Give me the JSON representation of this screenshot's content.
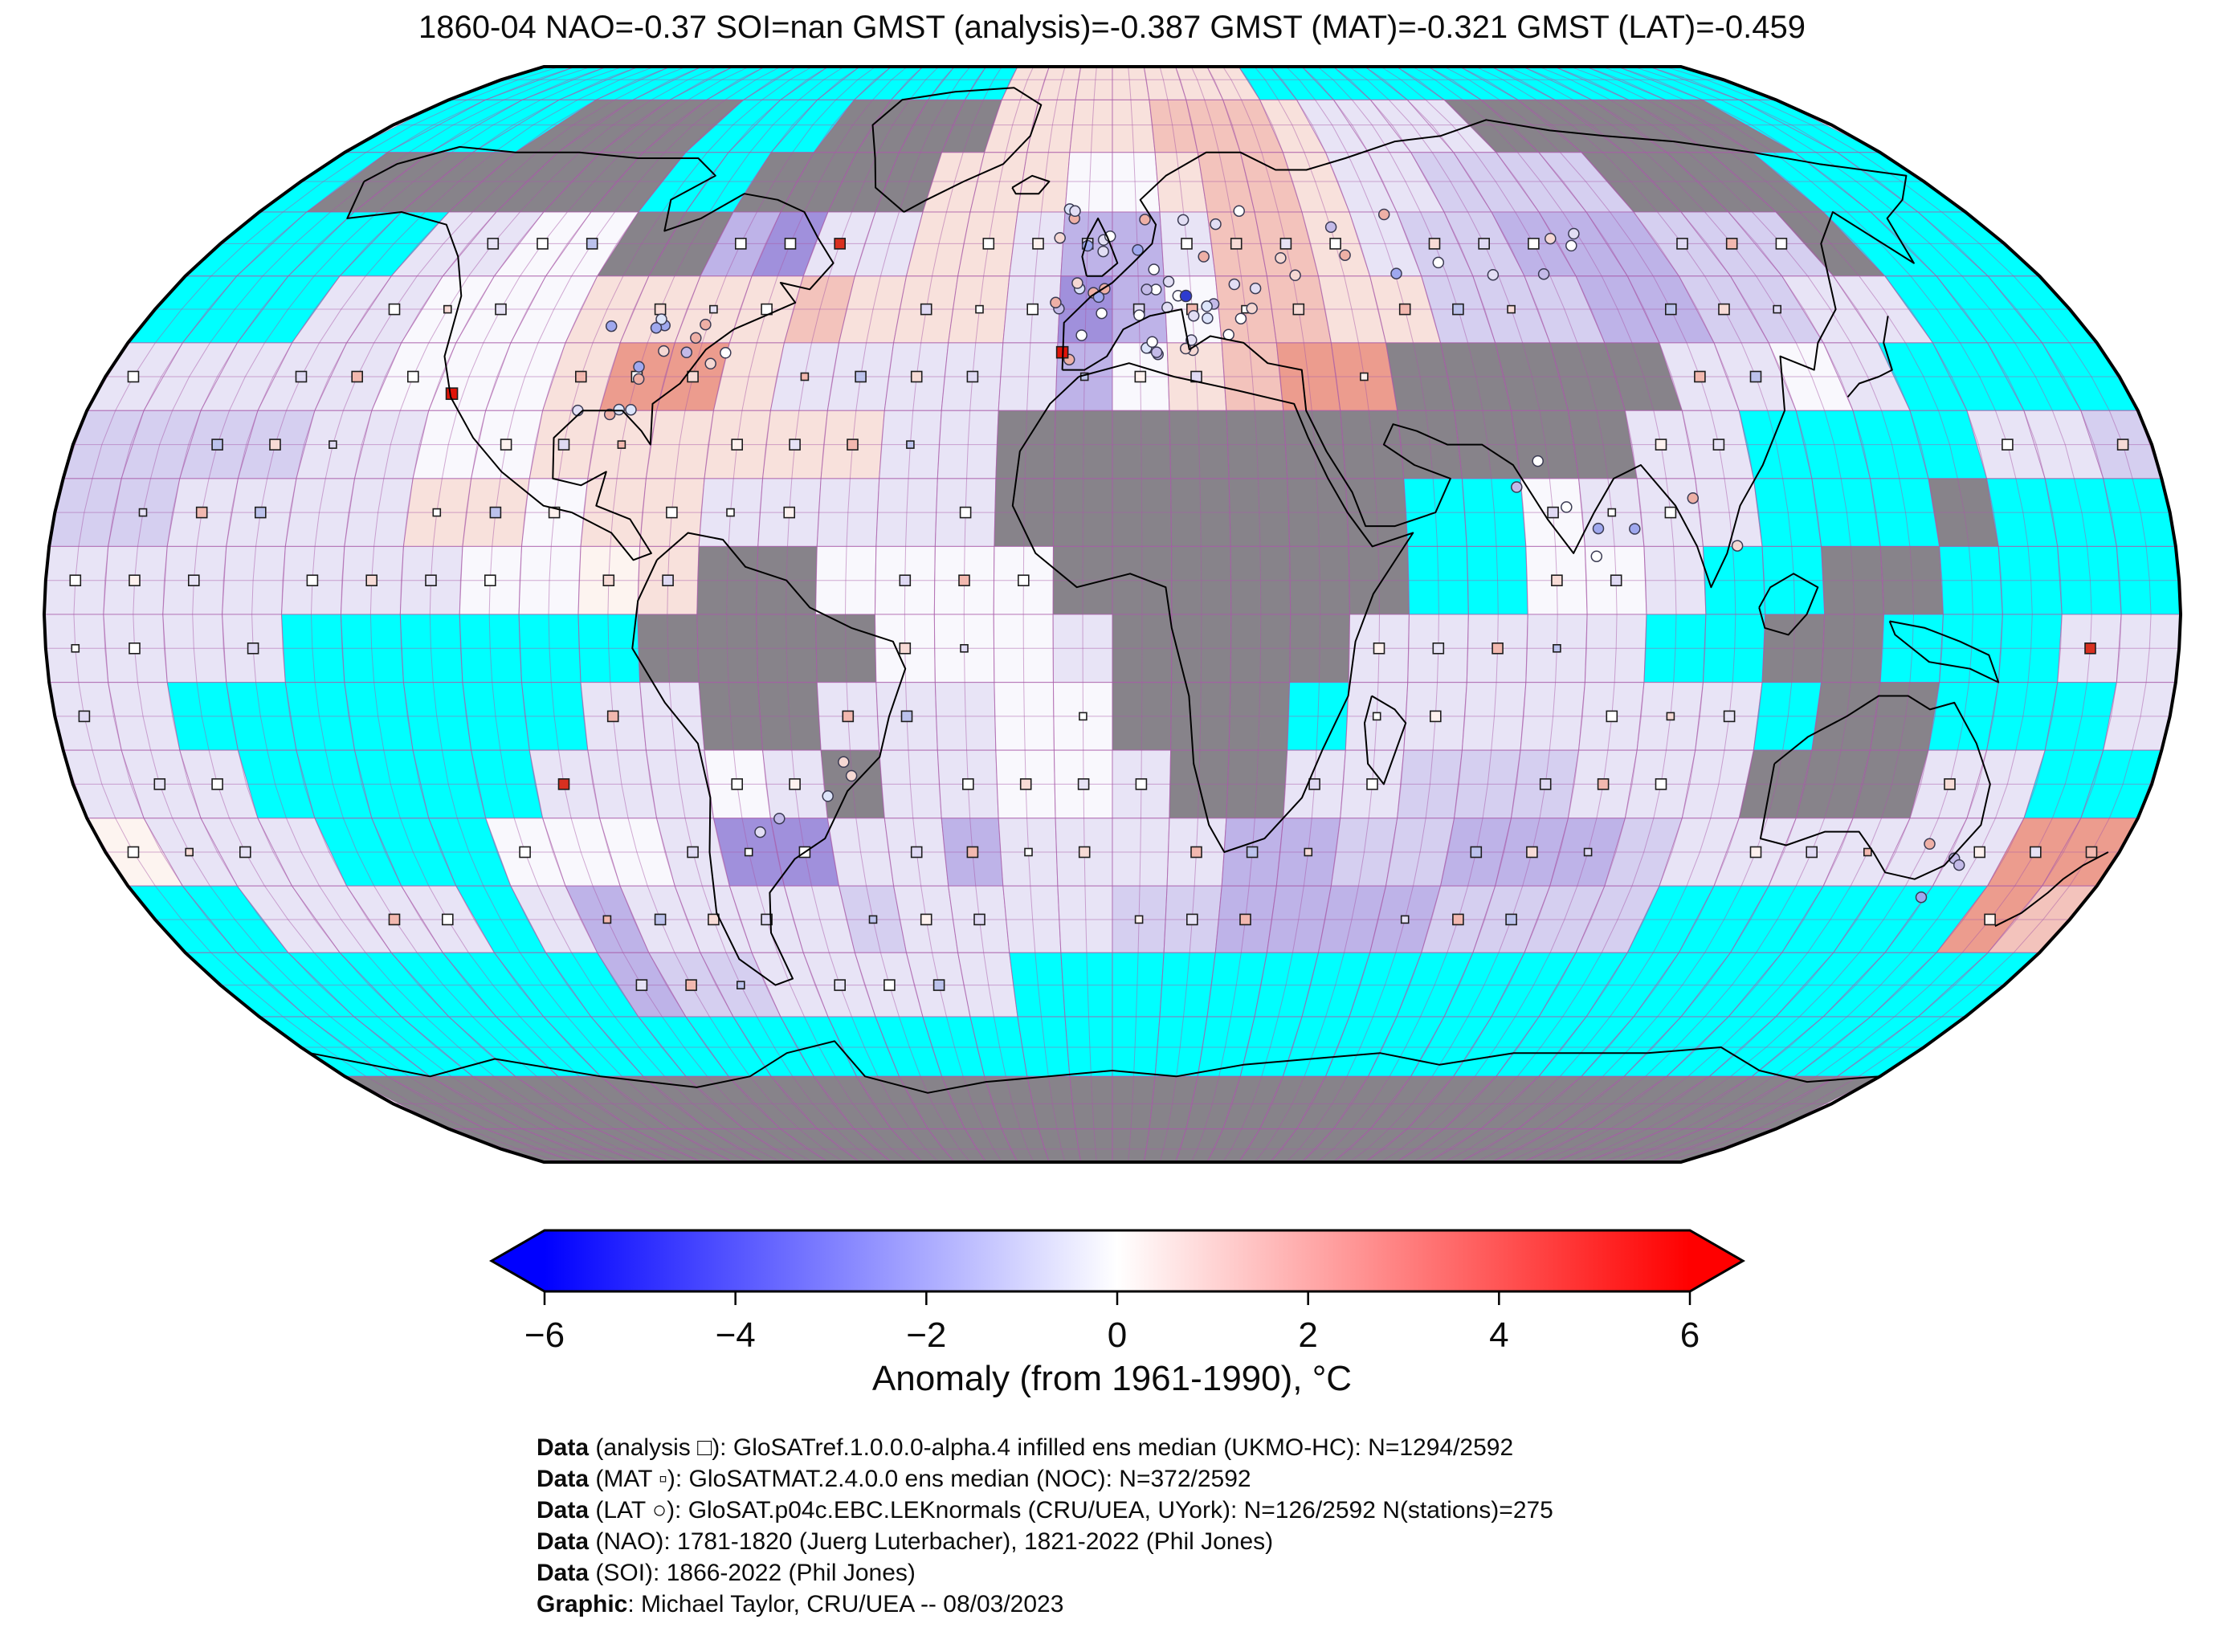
{
  "title": "1860-04 NAO=-0.37 SOI=nan GMST (analysis)=-0.387 GMST (MAT)=-0.321 GMST (LAT)=-0.459",
  "colorbar": {
    "label": "Anomaly (from 1961-1990), °C",
    "tick_labels": [
      "−6",
      "−4",
      "−2",
      "0",
      "2",
      "4",
      "6"
    ]
  },
  "footer": {
    "lines": [
      {
        "bold": "Data",
        "text": " (analysis □): GloSATref.1.0.0.0-alpha.4 infilled ens median (UKMO-HC): N=1294/2592"
      },
      {
        "bold": "Data",
        "text": " (MAT ▫): GloSATMAT.2.4.0.0 ens median (NOC): N=372/2592"
      },
      {
        "bold": "Data",
        "text": " (LAT ○): GloSAT.p04c.EBC.LEKnormals (CRU/UEA, UYork): N=126/2592 N(stations)=275"
      },
      {
        "bold": "Data",
        "text": " (NAO): 1781-1820 (Juerg Luterbacher), 1821-2022 (Phil Jones)"
      },
      {
        "bold": "Data",
        "text": " (SOI): 1866-2022 (Phil Jones)"
      },
      {
        "bold": "Graphic",
        "text": ": Michael Taylor, CRU/UEA -- 08/03/2023"
      }
    ]
  },
  "chart_data": {
    "type": "heatmap",
    "projection": "robinson",
    "title": "1860-04 NAO=-0.37 SOI=nan GMST (analysis)=-0.387 GMST (MAT)=-0.321 GMST (LAT)=-0.459",
    "date": "1860-04",
    "indices": {
      "NAO": -0.37,
      "SOI": "nan",
      "GMST_analysis": -0.387,
      "GMST_MAT": -0.321,
      "GMST_LAT": -0.459
    },
    "colorbar": {
      "label": "Anomaly (from 1961-1990), °C",
      "ticks": [
        -6,
        -4,
        -2,
        0,
        2,
        4,
        6
      ],
      "tick_labels": [
        "−6",
        "−4",
        "−2",
        "0",
        "2",
        "4",
        "6"
      ],
      "range": [
        -6,
        6
      ],
      "colormap": "blue-white-red",
      "extend": "both",
      "left_color": "#0000ff",
      "mid_color": "#ffffff",
      "right_color": "#ff0000"
    },
    "counts": {
      "analysis": "1294/2592",
      "MAT": "372/2592",
      "LAT": "126/2592",
      "stations": 275
    },
    "marker_legend": [
      {
        "symbol": "open-square",
        "name": "analysis"
      },
      {
        "symbol": "small-square",
        "name": "MAT"
      },
      {
        "symbol": "open-circle",
        "name": "LAT station"
      }
    ],
    "grid": {
      "cell_deg": 10,
      "origin": "90N,180W",
      "palette": {
        "C": "#00ffff",
        "G": "#87838a",
        "W": "#f9f8fd",
        "w": "#fdf4f0",
        "l": "#e8e4f6",
        "L": "#d5cff0",
        "B": "#beb3e8",
        "D": "#a090dc",
        "p": "#f8e1dc",
        "P": "#f3c3bc",
        "R": "#ec9c8e"
      },
      "legend": {
        "C": "no-data ocean (cyan)",
        "G": "no-data land (grey)",
        "W": "~0 anomaly",
        "w": "~+0.1",
        "l": "~-0.3",
        "L": "~-0.6",
        "B": "~-1.0",
        "D": "~-1.8",
        "p": "~+0.4",
        "P": "~+0.9",
        "R": "~+1.8"
      },
      "rows": [
        "CCCCCCCCCCCCCCCpppppppCCCCCCCCCCCCCC",
        "CCCCGGGGCCCGGGGppppPPPpllllGGGGGGGCC",
        "CGGGGGGGCCGGGGpppWWpPPpllLLLLGGGGCCC",
        "CCCCllWWGGBDllpplBBlPPplLLBBBLLLGCCC",
        "CCCllWWWppppPppplDBWPPppLLLBBLLllCCC",
        "lllllWWWpRRplllllBWpPRRGGGGGllWlCCCC",
        "LLLLllWWppppppllGGGGGGGGGGGllCCCCllL",
        "LLllllppWpplllllGGGGGGGCCWlllCCCGCCC",
        "lllllllWWwpGGWWWWGGGGGGCCWWlCCGGCCCC",
        "llllCCCCCCGGGGWWWlGGGGlllllCCGGCCCll",
        "llCCCCCCCllGGlllWWGGGClllllllCGGCCCl",
        "lllCCCCClllWlGllWWlGGllLLLlllGGGllCC",
        "wlllCCCWWWlDDllBllllBBLLBBBLllllllRR",
        "CCllllClBllllLllllLLBBBBLLLLCCCCCCRP",
        "CCCCCCCCBLLlllllCCCCCCCCCCCCCCCCCCCC",
        "CCCCCCCCCCCCCCCCCCCCCCCCCCCCCCCCCCCC",
        "GGGGGGGGGGGGGGGGGGGGGGGGGGGGGGGGGGGG",
        "GGGGGGGGGGGGGGGGGGGGGGGGGGGGGGGGGGGG"
      ]
    },
    "graticule_deg": 5,
    "graticule_color": "#a85aa8",
    "coastline_color": "#000000"
  }
}
